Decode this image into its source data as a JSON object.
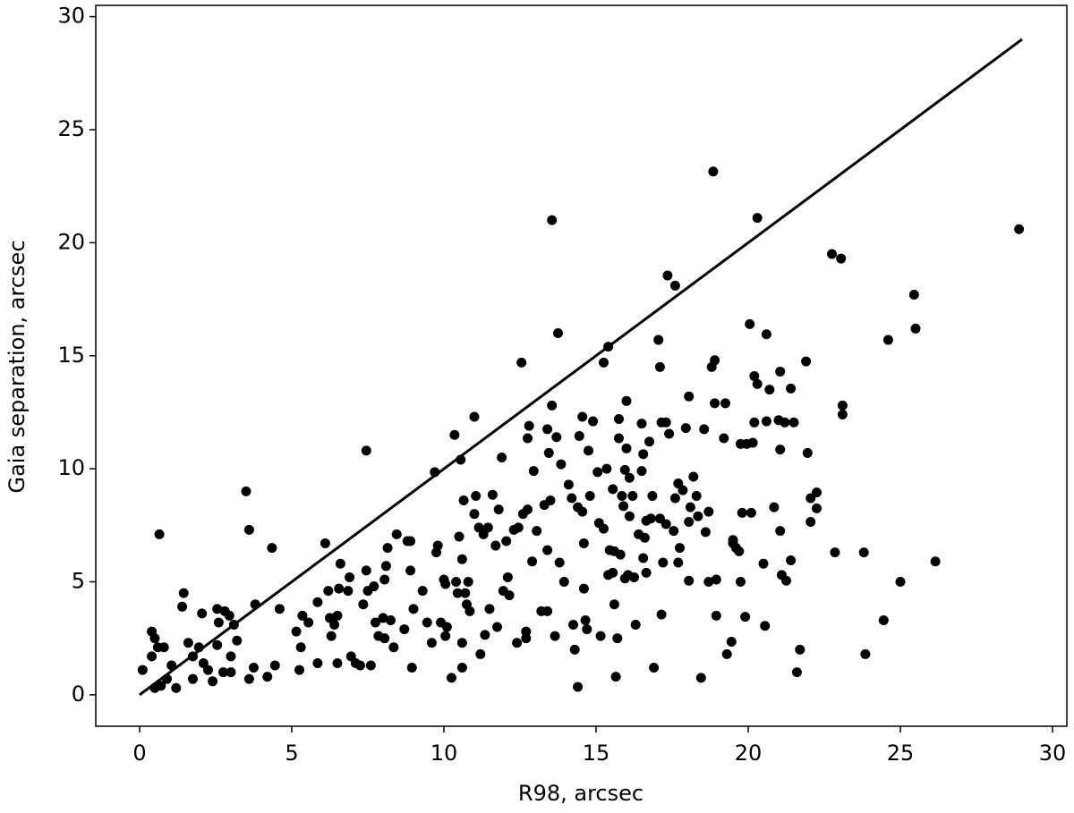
{
  "chart_data": {
    "type": "scatter",
    "xlabel": "R98, arcsec",
    "ylabel": "Gaia separation, arcsec",
    "xlim": [
      -1.44,
      30.47
    ],
    "ylim": [
      -1.39,
      30.5
    ],
    "xticks": [
      0,
      5,
      10,
      15,
      20,
      25,
      30
    ],
    "yticks": [
      0,
      5,
      10,
      15,
      20,
      25,
      30
    ],
    "grid": false,
    "series": [
      {
        "type": "scatter",
        "color": "#000000",
        "x": [
          0.1,
          0.65,
          0.4,
          0.5,
          0.4,
          0.6,
          0.8,
          0.5,
          0.7,
          0.9,
          1.05,
          1.2,
          1.45,
          1.4,
          1.6,
          1.75,
          1.95,
          2.05,
          2.1,
          1.75,
          2.25,
          2.4,
          2.55,
          2.6,
          2.8,
          2.95,
          2.55,
          2.75,
          3.1,
          3.2,
          3.0,
          3.0,
          3.5,
          3.6,
          3.8,
          3.75,
          3.6,
          4.2,
          4.35,
          4.45,
          4.6,
          5.15,
          5.3,
          5.25,
          5.35,
          5.55,
          5.85,
          5.85,
          6.1,
          6.2,
          6.25,
          6.3,
          6.4,
          6.5,
          6.55,
          6.6,
          6.5,
          6.85,
          6.9,
          6.95,
          7.1,
          7.25,
          7.45,
          7.45,
          7.35,
          7.5,
          7.6,
          7.7,
          7.75,
          7.85,
          8.0,
          8.05,
          8.1,
          8.15,
          8.05,
          8.25,
          8.35,
          8.45,
          8.7,
          8.8,
          8.9,
          8.95,
          9.0,
          8.9,
          9.3,
          9.45,
          9.6,
          9.7,
          9.75,
          9.8,
          9.9,
          10.0,
          10.05,
          10.05,
          10.1,
          10.25,
          10.35,
          10.4,
          10.45,
          10.5,
          10.55,
          10.6,
          10.6,
          10.6,
          10.65,
          10.7,
          10.75,
          10.8,
          10.85,
          11.0,
          11.0,
          11.05,
          11.15,
          11.2,
          11.3,
          11.35,
          11.45,
          11.5,
          11.6,
          11.7,
          11.75,
          11.8,
          11.9,
          11.95,
          12.05,
          12.1,
          12.15,
          12.3,
          12.4,
          12.45,
          12.55,
          12.6,
          12.7,
          12.7,
          12.75,
          12.75,
          12.8,
          12.9,
          12.95,
          13.05,
          13.2,
          13.3,
          13.4,
          13.4,
          13.4,
          13.45,
          13.5,
          13.55,
          13.55,
          13.65,
          13.7,
          13.75,
          13.8,
          13.85,
          13.95,
          14.1,
          14.2,
          14.25,
          14.3,
          14.4,
          14.4,
          14.45,
          14.55,
          14.55,
          14.6,
          14.6,
          14.65,
          14.7,
          14.75,
          14.8,
          14.9,
          15.05,
          15.1,
          15.15,
          15.25,
          15.25,
          15.35,
          15.4,
          15.4,
          15.45,
          15.55,
          15.55,
          15.6,
          15.6,
          15.65,
          15.7,
          15.75,
          15.75,
          15.8,
          15.85,
          15.9,
          15.95,
          15.95,
          16.0,
          16.0,
          16.05,
          16.1,
          16.1,
          16.2,
          16.25,
          16.3,
          16.4,
          16.5,
          16.5,
          16.55,
          16.55,
          16.6,
          16.65,
          16.65,
          16.75,
          16.8,
          16.85,
          16.9,
          17.05,
          17.1,
          17.1,
          17.15,
          17.15,
          17.2,
          17.3,
          17.3,
          17.35,
          17.4,
          17.55,
          17.6,
          17.6,
          17.7,
          17.7,
          17.75,
          17.85,
          17.95,
          18.05,
          18.05,
          18.05,
          18.1,
          18.2,
          18.3,
          18.35,
          18.45,
          18.55,
          18.6,
          18.7,
          18.7,
          18.8,
          18.85,
          18.9,
          18.9,
          18.95,
          18.95,
          19.2,
          19.25,
          19.3,
          19.45,
          19.5,
          19.5,
          19.6,
          19.7,
          19.75,
          19.75,
          19.8,
          19.9,
          19.95,
          20.05,
          20.1,
          20.15,
          20.2,
          20.2,
          20.3,
          20.3,
          20.5,
          20.55,
          20.6,
          20.6,
          20.7,
          20.85,
          21.0,
          21.05,
          21.05,
          21.05,
          21.1,
          21.2,
          21.25,
          21.4,
          21.4,
          21.5,
          21.6,
          21.7,
          21.9,
          21.95,
          22.05,
          22.05,
          22.25,
          22.25,
          22.75,
          22.85,
          23.05,
          23.1,
          23.1,
          23.8,
          23.85,
          24.45,
          24.6,
          25.0,
          25.45,
          25.5,
          26.15,
          28.9
        ],
        "y": [
          1.1,
          7.1,
          2.8,
          2.5,
          1.7,
          2.1,
          2.1,
          0.3,
          0.4,
          0.7,
          1.3,
          0.3,
          4.5,
          3.9,
          2.3,
          1.7,
          2.1,
          3.6,
          1.4,
          0.7,
          1.1,
          0.6,
          3.8,
          3.2,
          3.7,
          3.5,
          2.2,
          1.0,
          3.1,
          2.4,
          1.7,
          1.0,
          9.0,
          7.3,
          4.0,
          1.2,
          0.7,
          0.8,
          6.5,
          1.3,
          3.8,
          2.8,
          2.1,
          1.1,
          3.5,
          3.2,
          4.1,
          1.4,
          6.7,
          4.6,
          3.4,
          2.6,
          3.1,
          1.4,
          4.7,
          5.8,
          3.5,
          4.6,
          5.2,
          1.7,
          1.4,
          1.3,
          10.8,
          5.5,
          4.0,
          4.6,
          1.3,
          4.8,
          3.2,
          2.6,
          3.4,
          5.1,
          5.7,
          6.5,
          2.5,
          3.3,
          2.1,
          7.1,
          2.9,
          6.8,
          5.5,
          1.2,
          3.8,
          6.8,
          4.6,
          3.2,
          2.3,
          9.85,
          6.3,
          6.6,
          3.2,
          5.1,
          4.9,
          2.6,
          3.0,
          0.75,
          11.5,
          5.0,
          4.5,
          7.0,
          10.4,
          6.0,
          2.3,
          1.2,
          8.6,
          4.5,
          4.0,
          5.0,
          3.7,
          12.3,
          8.0,
          8.8,
          7.4,
          1.8,
          7.1,
          2.65,
          7.4,
          3.8,
          8.85,
          6.6,
          3.0,
          8.2,
          10.5,
          4.6,
          6.8,
          5.2,
          4.4,
          7.3,
          2.3,
          7.4,
          14.7,
          8.0,
          2.8,
          2.5,
          8.2,
          11.35,
          11.9,
          5.9,
          9.9,
          7.25,
          3.7,
          8.4,
          3.7,
          11.75,
          6.4,
          10.7,
          8.6,
          21.0,
          12.8,
          2.6,
          11.4,
          16.0,
          5.85,
          10.2,
          5.0,
          9.3,
          8.7,
          3.1,
          2.0,
          8.3,
          0.35,
          11.45,
          12.3,
          8.1,
          6.7,
          4.7,
          3.3,
          2.9,
          10.8,
          8.8,
          12.1,
          9.85,
          7.6,
          2.6,
          14.7,
          7.35,
          10.0,
          15.4,
          5.3,
          6.4,
          5.4,
          9.1,
          4.0,
          6.35,
          0.8,
          2.5,
          12.2,
          11.35,
          6.2,
          8.8,
          8.35,
          5.15,
          9.95,
          13.0,
          10.9,
          5.3,
          9.6,
          7.9,
          8.8,
          5.2,
          3.1,
          7.1,
          12.0,
          9.9,
          10.65,
          6.05,
          6.95,
          7.7,
          5.4,
          11.2,
          7.8,
          8.8,
          1.2,
          15.7,
          7.8,
          14.5,
          12.05,
          3.55,
          5.85,
          7.55,
          12.05,
          18.55,
          11.55,
          7.25,
          8.7,
          18.1,
          5.85,
          9.35,
          6.5,
          9.05,
          11.8,
          13.2,
          5.05,
          7.65,
          8.3,
          9.65,
          8.8,
          7.9,
          0.75,
          11.75,
          7.2,
          5.0,
          8.1,
          14.5,
          23.15,
          12.9,
          14.8,
          5.1,
          3.5,
          11.35,
          12.9,
          1.8,
          2.35,
          6.85,
          6.7,
          6.5,
          6.35,
          11.1,
          5.0,
          8.05,
          3.45,
          11.1,
          16.4,
          8.05,
          11.15,
          12.05,
          14.1,
          21.1,
          13.75,
          5.8,
          3.05,
          12.1,
          15.95,
          13.5,
          8.3,
          12.15,
          7.25,
          10.85,
          14.3,
          5.3,
          12.05,
          5.05,
          5.95,
          13.55,
          12.05,
          1.0,
          2.0,
          14.75,
          10.7,
          8.7,
          7.65,
          8.95,
          8.25,
          19.5,
          6.3,
          19.3,
          12.8,
          12.4,
          6.3,
          1.8,
          3.3,
          15.7,
          5.0,
          17.7,
          16.2,
          5.9,
          20.6
        ]
      },
      {
        "type": "line",
        "color": "#000000",
        "x": [
          0,
          29
        ],
        "y": [
          0,
          29
        ]
      }
    ]
  }
}
